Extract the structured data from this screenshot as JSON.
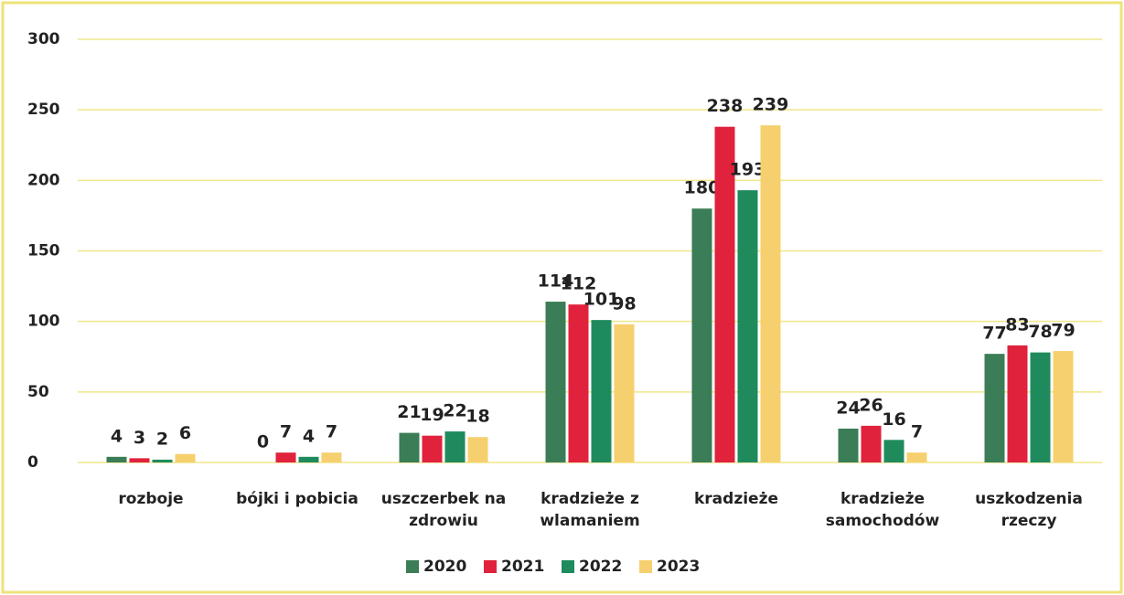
{
  "chart_data": {
    "type": "bar",
    "categories": [
      "rozboje",
      "bójki i pobicia",
      "uszczerbek na zdrowiu",
      "kradzieże z wlamaniem",
      "kradzieże",
      "kradzieże samochodów",
      "uszkodzenia rzeczy"
    ],
    "series": [
      {
        "name": "2020",
        "color": "#3b7d56",
        "values": [
          4,
          0,
          21,
          114,
          180,
          24,
          77
        ]
      },
      {
        "name": "2021",
        "color": "#e0223c",
        "values": [
          3,
          7,
          19,
          112,
          238,
          26,
          83
        ]
      },
      {
        "name": "2022",
        "color": "#1f8b5d",
        "values": [
          2,
          4,
          22,
          101,
          193,
          16,
          78
        ]
      },
      {
        "name": "2023",
        "color": "#f6d06e",
        "values": [
          6,
          7,
          18,
          98,
          239,
          7,
          79
        ]
      }
    ],
    "ylim": [
      0,
      300
    ],
    "yticks": [
      0,
      50,
      100,
      150,
      200,
      250,
      300
    ],
    "grid": true,
    "legend": "bottom"
  }
}
